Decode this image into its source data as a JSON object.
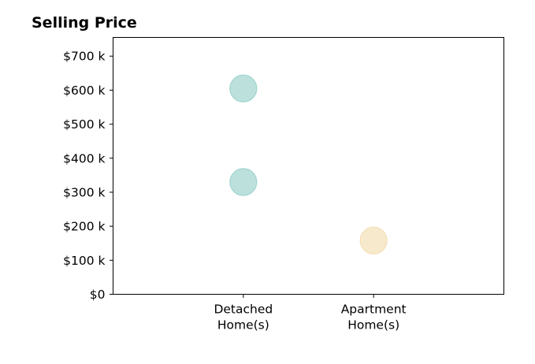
{
  "chart_data": {
    "type": "scatter",
    "title": "Selling Price",
    "xlabel": "",
    "ylabel": "",
    "categories": [
      [
        "Detached",
        "Home(s)"
      ],
      [
        "Apartment",
        "Home(s)"
      ]
    ],
    "x_domain": [
      -1,
      2
    ],
    "ylim": [
      0,
      755
    ],
    "y_ticks": [
      0,
      100,
      200,
      300,
      400,
      500,
      600,
      700
    ],
    "y_tick_labels": [
      "$0",
      "$100 k",
      "$200 k",
      "$300 k",
      "$400 k",
      "$500 k",
      "$600 k",
      "$700 k"
    ],
    "grid": false,
    "legend": "none",
    "points": [
      {
        "category": 0,
        "value": 605,
        "color": "#9fd4cf"
      },
      {
        "category": 0,
        "value": 330,
        "color": "#9fd4cf"
      },
      {
        "category": 1,
        "value": 158,
        "color": "#f4e0b7"
      }
    ]
  }
}
